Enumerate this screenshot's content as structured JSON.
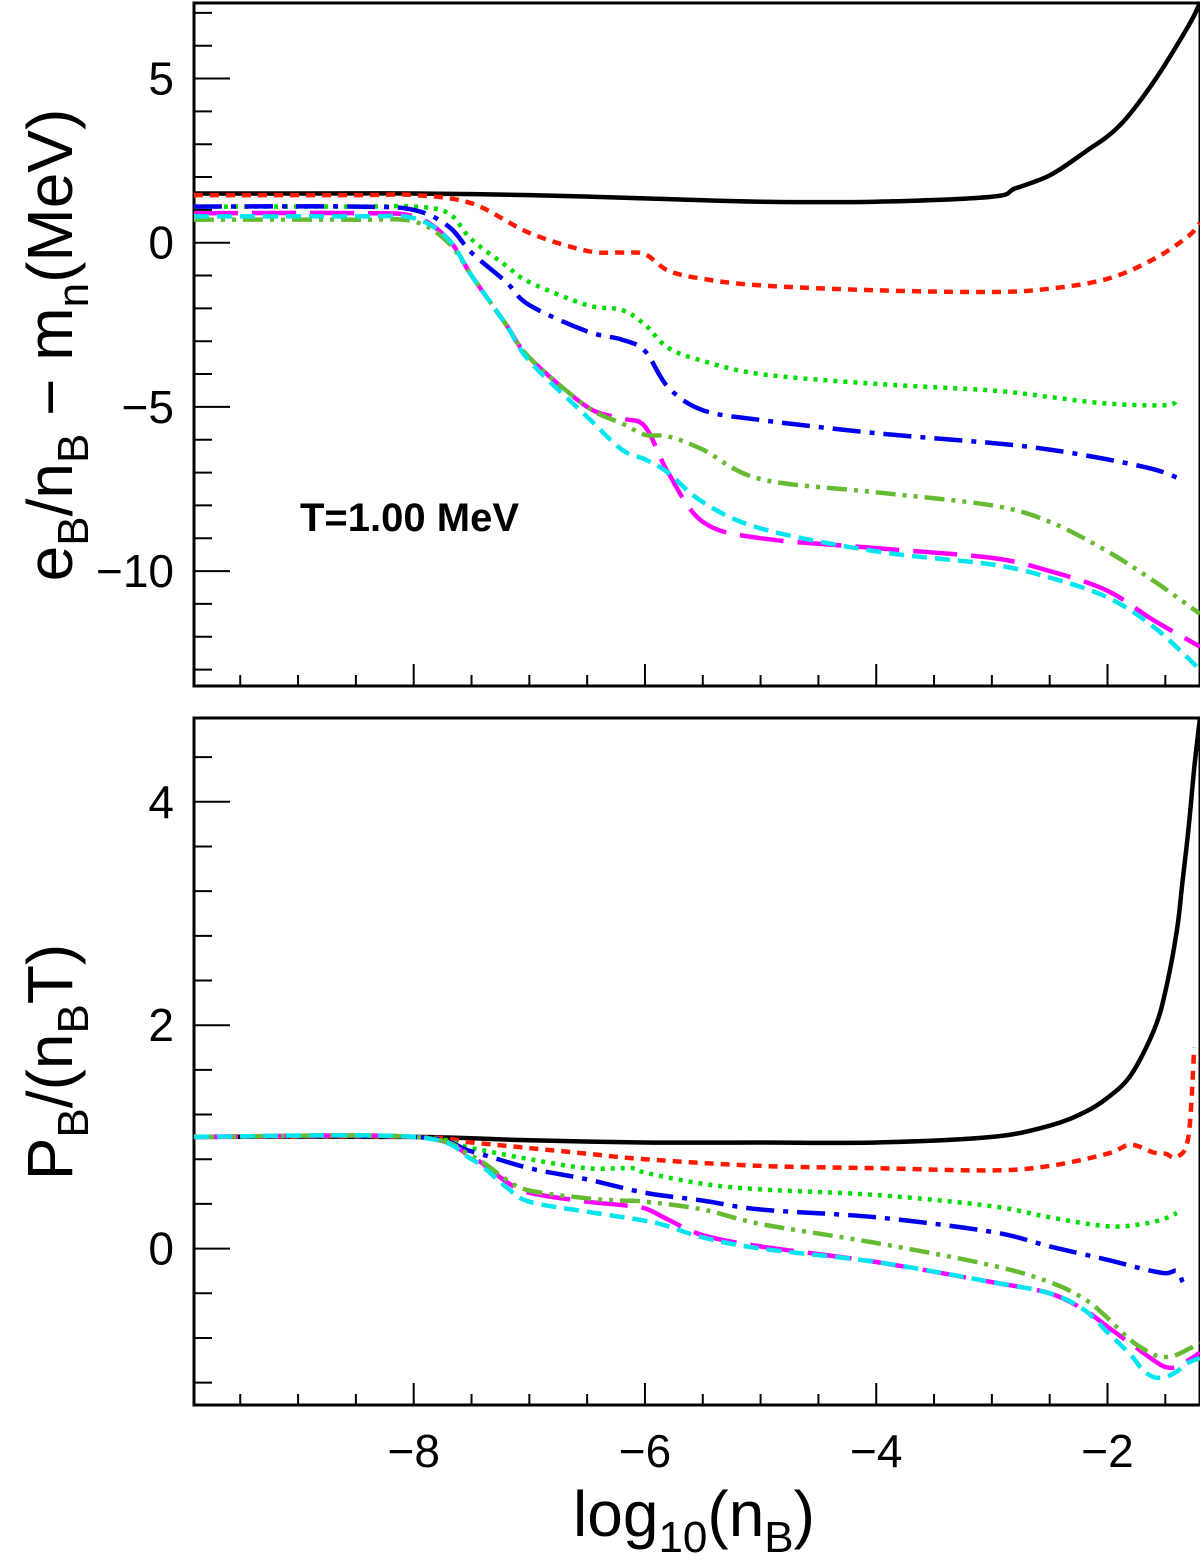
{
  "chart_data": [
    {
      "type": "line",
      "panel": "top",
      "ylabel": "e_B/n_B − m_n(MeV)",
      "ylabel_parts": {
        "a": "e",
        "a_sub": "B",
        "b": "/n",
        "b_sub": "B",
        "c": " − m",
        "c_sub": "n",
        "d": "(MeV)"
      },
      "annotation": "T=1.00 MeV",
      "xlim": [
        -9.9,
        -1.2
      ],
      "ylim": [
        -13.5,
        7.3
      ],
      "yticks": [
        5,
        0,
        -5,
        -10
      ],
      "ytick_labels": [
        "5",
        "0",
        "−5",
        "−10"
      ],
      "series": [
        {
          "name": "black solid",
          "color": "#000000",
          "dash": "solid",
          "x": [
            -9.9,
            -9,
            -8,
            -7,
            -6,
            -5,
            -4,
            -3,
            -2.8,
            -2.5,
            -2.2,
            -1.9,
            -1.6,
            -1.3,
            -1.2
          ],
          "y": [
            1.5,
            1.5,
            1.5,
            1.45,
            1.35,
            1.25,
            1.25,
            1.4,
            1.65,
            2.05,
            2.75,
            3.55,
            4.9,
            6.6,
            7.3
          ]
        },
        {
          "name": "red dotted",
          "color": "#ff1a00",
          "dash": "short",
          "x": [
            -9.9,
            -8.5,
            -8,
            -7.5,
            -7,
            -6.5,
            -6.2,
            -6.0,
            -5.8,
            -5.5,
            -5,
            -4,
            -3,
            -2.5,
            -2,
            -1.6,
            -1.3,
            -1.2
          ],
          "y": [
            1.45,
            1.45,
            1.45,
            1.2,
            0.3,
            -0.25,
            -0.3,
            -0.35,
            -0.85,
            -1.1,
            -1.3,
            -1.45,
            -1.5,
            -1.4,
            -1.1,
            -0.5,
            0.2,
            0.6
          ]
        },
        {
          "name": "green dotted",
          "color": "#00dd00",
          "dash": "dot",
          "x": [
            -9.9,
            -8.5,
            -8,
            -7.7,
            -7.5,
            -7.2,
            -7,
            -6.5,
            -6.2,
            -6.0,
            -5.8,
            -5.5,
            -5,
            -4,
            -3,
            -2.5,
            -2,
            -1.5,
            -1.4
          ],
          "y": [
            1.1,
            1.1,
            1.1,
            0.9,
            0.1,
            -0.7,
            -1.2,
            -1.9,
            -2.05,
            -2.5,
            -3.2,
            -3.6,
            -4.0,
            -4.3,
            -4.5,
            -4.7,
            -4.9,
            -4.95,
            -4.8
          ]
        },
        {
          "name": "blue dash-dot",
          "color": "#0000ee",
          "dash": "dashdot",
          "x": [
            -9.9,
            -8.5,
            -8,
            -7.7,
            -7.5,
            -7.2,
            -7,
            -6.5,
            -6.2,
            -6.0,
            -5.8,
            -5.5,
            -5,
            -4,
            -3,
            -2.5,
            -2,
            -1.6,
            -1.4
          ],
          "y": [
            1.1,
            1.1,
            1.0,
            0.5,
            -0.3,
            -1.2,
            -1.9,
            -2.7,
            -2.95,
            -3.3,
            -4.4,
            -5.1,
            -5.4,
            -5.8,
            -6.1,
            -6.3,
            -6.6,
            -6.9,
            -7.15
          ]
        },
        {
          "name": "magenta long dash",
          "color": "#ff00ff",
          "dash": "long",
          "x": [
            -9.9,
            -8.5,
            -8,
            -7.7,
            -7.5,
            -7.2,
            -7,
            -6.5,
            -6.2,
            -6.0,
            -5.8,
            -5.5,
            -5,
            -4,
            -3,
            -2.5,
            -2,
            -1.6,
            -1.2
          ],
          "y": [
            0.9,
            0.9,
            0.8,
            0.1,
            -1.0,
            -2.5,
            -3.5,
            -5.0,
            -5.35,
            -5.6,
            -7.0,
            -8.5,
            -9.0,
            -9.3,
            -9.6,
            -10.0,
            -10.6,
            -11.5,
            -12.3
          ]
        },
        {
          "name": "olive-green dash-dot-dot",
          "color": "#66bb33",
          "dash": "dashdotdot",
          "x": [
            -9.9,
            -8.5,
            -8,
            -7.7,
            -7.5,
            -7.2,
            -7,
            -6.5,
            -6.2,
            -6.0,
            -5.8,
            -5.5,
            -5,
            -4,
            -3,
            -2.5,
            -2,
            -1.6,
            -1.2
          ],
          "y": [
            0.7,
            0.7,
            0.65,
            0.0,
            -1.0,
            -2.5,
            -3.5,
            -5.0,
            -5.5,
            -5.85,
            -5.9,
            -6.3,
            -7.2,
            -7.6,
            -8.0,
            -8.5,
            -9.4,
            -10.3,
            -11.3
          ]
        },
        {
          "name": "cyan dashed",
          "color": "#00e5ee",
          "dash": "medium",
          "x": [
            -9.9,
            -8.5,
            -8,
            -7.7,
            -7.5,
            -7.2,
            -7,
            -6.5,
            -6.2,
            -6.0,
            -5.8,
            -5.5,
            -5,
            -4,
            -3,
            -2.5,
            -2,
            -1.6,
            -1.2
          ],
          "y": [
            0.8,
            0.8,
            0.75,
            0.1,
            -1.0,
            -2.5,
            -3.6,
            -5.3,
            -6.3,
            -6.6,
            -7.0,
            -7.9,
            -8.7,
            -9.4,
            -9.8,
            -10.2,
            -10.8,
            -11.7,
            -13.0
          ]
        }
      ]
    },
    {
      "type": "line",
      "panel": "bottom",
      "ylabel": "P_B/(n_BT)",
      "ylabel_parts": {
        "a": "P",
        "a_sub": "B",
        "b": "/(n",
        "b_sub": "B",
        "c": "T)"
      },
      "xlabel": "log_10(n_B)",
      "xlabel_parts": {
        "a": "log",
        "a_sub": "10",
        "b": "(n",
        "b_sub": "B",
        "c": ")"
      },
      "xlim": [
        -9.9,
        -1.2
      ],
      "ylim": [
        -1.4,
        4.75
      ],
      "xticks": [
        -8,
        -6,
        -4,
        -2
      ],
      "xtick_labels": [
        "−8",
        "−6",
        "−4",
        "−2"
      ],
      "yticks": [
        4,
        2,
        0
      ],
      "ytick_labels": [
        "4",
        "2",
        "0"
      ],
      "series": [
        {
          "name": "black solid",
          "color": "#000000",
          "dash": "solid",
          "x": [
            -9.9,
            -8,
            -7,
            -6,
            -5,
            -4,
            -3,
            -2.5,
            -2.2,
            -2.0,
            -1.8,
            -1.6,
            -1.5,
            -1.4,
            -1.35,
            -1.3,
            -1.25,
            -1.2
          ],
          "y": [
            1.0,
            1.0,
            0.97,
            0.95,
            0.95,
            0.95,
            1.0,
            1.1,
            1.22,
            1.35,
            1.55,
            1.95,
            2.3,
            2.85,
            3.3,
            3.75,
            4.3,
            4.75
          ]
        },
        {
          "name": "red dotted",
          "color": "#ff1a00",
          "dash": "short",
          "x": [
            -9.9,
            -8,
            -7.5,
            -7,
            -6.5,
            -6,
            -5,
            -4,
            -3,
            -2.5,
            -2,
            -1.8,
            -1.6,
            -1.5,
            -1.4,
            -1.3,
            -1.25
          ],
          "y": [
            1.0,
            1.0,
            0.95,
            0.9,
            0.85,
            0.8,
            0.74,
            0.72,
            0.7,
            0.74,
            0.85,
            0.93,
            0.86,
            0.85,
            0.82,
            1.0,
            1.8
          ]
        },
        {
          "name": "green dotted",
          "color": "#00dd00",
          "dash": "dot",
          "x": [
            -9.9,
            -8,
            -7.5,
            -7,
            -6.5,
            -6.1,
            -6,
            -5.5,
            -5,
            -4,
            -3,
            -2.5,
            -2,
            -1.7,
            -1.5,
            -1.4
          ],
          "y": [
            1.0,
            1.0,
            0.9,
            0.8,
            0.72,
            0.72,
            0.68,
            0.58,
            0.53,
            0.48,
            0.38,
            0.28,
            0.2,
            0.22,
            0.27,
            0.32
          ]
        },
        {
          "name": "blue dash-dot",
          "color": "#0000ee",
          "dash": "dashdot",
          "x": [
            -9.9,
            -8,
            -7.5,
            -7,
            -6.5,
            -6,
            -5.5,
            -5,
            -4,
            -3,
            -2.5,
            -2,
            -1.7,
            -1.5,
            -1.4,
            -1.35
          ],
          "y": [
            1.0,
            1.0,
            0.87,
            0.72,
            0.62,
            0.5,
            0.43,
            0.35,
            0.28,
            0.15,
            0.02,
            -0.1,
            -0.18,
            -0.22,
            -0.2,
            -0.3
          ]
        },
        {
          "name": "magenta long dash",
          "color": "#ff00ff",
          "dash": "long",
          "x": [
            -9.9,
            -8,
            -7.5,
            -7.2,
            -7,
            -6.5,
            -6.2,
            -6,
            -5.8,
            -5.5,
            -5,
            -4,
            -3,
            -2.5,
            -2.2,
            -2,
            -1.8,
            -1.6,
            -1.5,
            -1.4,
            -1.3,
            -1.2
          ],
          "y": [
            1.0,
            1.0,
            0.82,
            0.6,
            0.5,
            0.42,
            0.39,
            0.36,
            0.26,
            0.12,
            0.02,
            -0.12,
            -0.3,
            -0.4,
            -0.55,
            -0.7,
            -0.85,
            -1.0,
            -1.06,
            -1.06,
            -1.0,
            -0.93
          ]
        },
        {
          "name": "olive-green dash-dot-dot",
          "color": "#66bb33",
          "dash": "dashdotdot",
          "x": [
            -9.9,
            -8,
            -7.5,
            -7.2,
            -7,
            -6.5,
            -6.2,
            -6,
            -5.5,
            -5,
            -4,
            -3,
            -2.5,
            -2.2,
            -2,
            -1.8,
            -1.6,
            -1.5,
            -1.4,
            -1.3,
            -1.2
          ],
          "y": [
            1.0,
            1.0,
            0.83,
            0.62,
            0.52,
            0.45,
            0.43,
            0.42,
            0.35,
            0.22,
            0.05,
            -0.15,
            -0.3,
            -0.45,
            -0.62,
            -0.82,
            -0.95,
            -0.97,
            -0.95,
            -0.9,
            -0.85
          ]
        },
        {
          "name": "cyan dashed",
          "color": "#00e5ee",
          "dash": "medium",
          "x": [
            -9.9,
            -8,
            -7.5,
            -7.2,
            -7,
            -6.5,
            -6,
            -5.8,
            -5.5,
            -5,
            -4,
            -3,
            -2.5,
            -2.2,
            -2,
            -1.8,
            -1.7,
            -1.6,
            -1.5,
            -1.4,
            -1.3,
            -1.2
          ],
          "y": [
            1.0,
            1.0,
            0.8,
            0.55,
            0.42,
            0.33,
            0.25,
            0.2,
            0.1,
            0.0,
            -0.12,
            -0.3,
            -0.4,
            -0.55,
            -0.75,
            -0.95,
            -1.08,
            -1.15,
            -1.15,
            -1.1,
            -1.02,
            -0.98
          ]
        }
      ]
    }
  ]
}
